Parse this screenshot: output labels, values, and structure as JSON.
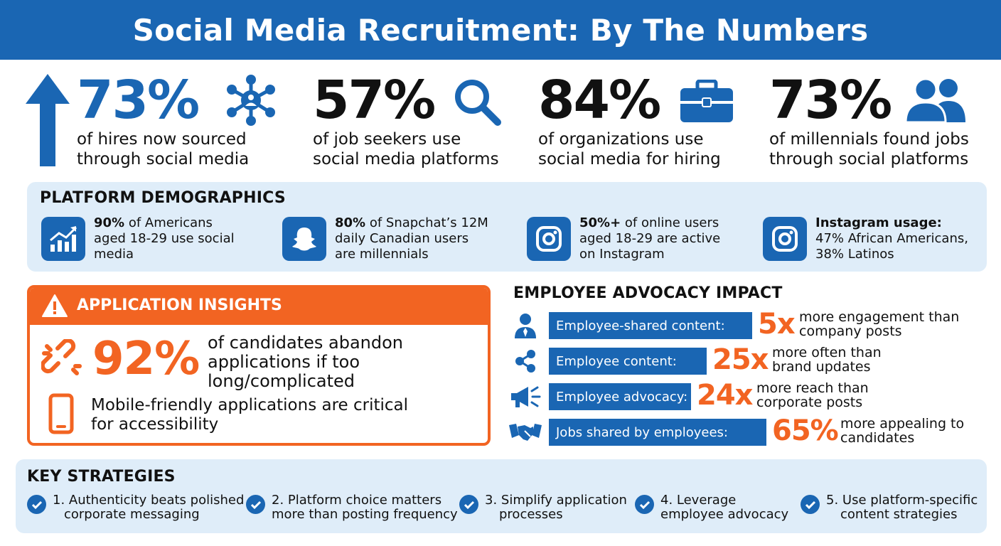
{
  "title": "Social Media Recruitment: By The Numbers",
  "colors": {
    "primary": "#1a66b3",
    "accent": "#f26422",
    "panel": "#dfedf9"
  },
  "stats": [
    {
      "value": "73%",
      "line1": "of hires now sourced",
      "line2": "through social media",
      "icon": "network-icon"
    },
    {
      "value": "57%",
      "line1": "of job seekers use",
      "line2": "social media platforms",
      "icon": "search-icon"
    },
    {
      "value": "84%",
      "line1": "of organizations use",
      "line2": "social media for hiring",
      "icon": "briefcase-icon"
    },
    {
      "value": "73%",
      "line1": "of millennials found jobs",
      "line2": "through social platforms",
      "icon": "people-icon"
    }
  ],
  "demographics": {
    "title": "PLATFORM DEMOGRAPHICS",
    "items": [
      {
        "bold": "90%",
        "line1": " of Americans",
        "line2": "aged 18-29 use social",
        "line3": "media",
        "icon": "growth-chart-icon"
      },
      {
        "bold": "80%",
        "line1": " of Snapchat’s 12M",
        "line2": "daily Canadian users",
        "line3": "are millennials",
        "icon": "snapchat-icon"
      },
      {
        "bold": "50%+",
        "line1": " of online users",
        "line2": "aged 18-29 are active",
        "line3": "on Instagram",
        "icon": "instagram-icon"
      },
      {
        "bold": "Instagram usage:",
        "line1": "",
        "line2": "47% African Americans,",
        "line3": "38% Latinos",
        "icon": "instagram-icon"
      }
    ]
  },
  "application": {
    "title": "APPLICATION INSIGHTS",
    "value": "92%",
    "line1": "of candidates abandon",
    "line2": "applications if too",
    "line3": "long/complicated",
    "mobile_line1": "Mobile-friendly applications are critical",
    "mobile_line2": "for accessibility"
  },
  "advocacy": {
    "title": "EMPLOYEE ADVOCACY IMPACT",
    "rows": [
      {
        "label": "Employee-shared content:",
        "value": "5x",
        "line1": "more engagement than",
        "line2": "company posts",
        "icon": "employee-icon"
      },
      {
        "label": "Employee content:",
        "value": "25x",
        "line1": "more often than",
        "line2": "brand updates",
        "icon": "share-icon"
      },
      {
        "label": "Employee advocacy:",
        "value": "24x",
        "line1": "more reach than",
        "line2": "corporate posts",
        "icon": "megaphone-icon"
      },
      {
        "label": "Jobs shared by employees:",
        "value": "65%",
        "line1": "more appealing to",
        "line2": "candidates",
        "icon": "handshake-icon"
      }
    ]
  },
  "strategies": {
    "title": "KEY STRATEGIES",
    "items": [
      {
        "line1": "1. Authenticity beats polished",
        "line2": "corporate messaging"
      },
      {
        "line1": "2. Platform choice matters",
        "line2": "more than posting frequency"
      },
      {
        "line1": "3. Simplify application",
        "line2": "processes"
      },
      {
        "line1": "4. Leverage",
        "line2": "employee advocacy"
      },
      {
        "line1": "5. Use platform-specific",
        "line2": "content strategies"
      }
    ]
  }
}
